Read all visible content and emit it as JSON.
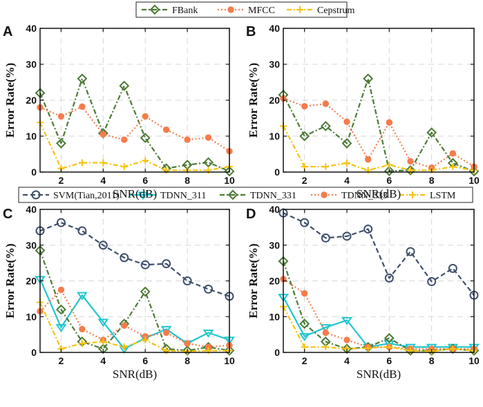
{
  "colors": {
    "FBank": "#4a7a33",
    "MFCC": "#f47c4c",
    "Cepstrum": "#f5c20f",
    "SVM": "#3d4f6b",
    "TDNN_311": "#1fc6cf",
    "TDNN_331": "#4a7a33",
    "TDNN_333": "#f47c4c",
    "LSTM": "#f5c20f"
  },
  "legends": [
    {
      "entries": [
        "FBank",
        "MFCC",
        "Cepstrum"
      ]
    },
    {
      "entries": [
        "SVM(Tian,2011)",
        "TDNN_311",
        "TDNN_331",
        "TDNN_333",
        "LSTM"
      ]
    }
  ],
  "chart_data": [
    {
      "panel": "A",
      "type": "line",
      "xlabel": "SNR(dB)",
      "ylabel": "Error Rate(%)",
      "xlim": [
        1,
        10
      ],
      "ylim": [
        0,
        40
      ],
      "xticks": [
        2,
        4,
        6,
        8,
        10
      ],
      "yticks": [
        0,
        10,
        20,
        30,
        40
      ],
      "grid": true,
      "x": [
        1,
        2,
        3,
        4,
        5,
        6,
        7,
        8,
        9,
        10
      ],
      "series": [
        {
          "name": "FBank",
          "key": "FBank",
          "marker": "diamond",
          "dash": "dashdot",
          "values": [
            22,
            8,
            26,
            10.8,
            24,
            9.5,
            1,
            2,
            2.7,
            0.2
          ]
        },
        {
          "name": "MFCC",
          "key": "MFCC",
          "marker": "circle",
          "dash": "dotted",
          "values": [
            18,
            15.5,
            18.2,
            10.5,
            9,
            15.5,
            11.8,
            9,
            9.6,
            5.8
          ]
        },
        {
          "name": "Cepstrum",
          "key": "Cepstrum",
          "marker": "plus",
          "dash": "dashdot",
          "values": [
            13.8,
            1,
            2.6,
            2.6,
            1.5,
            3.2,
            0.5,
            0.5,
            0.5,
            1.5
          ]
        }
      ]
    },
    {
      "panel": "B",
      "type": "line",
      "xlabel": "SNR(dB)",
      "ylabel": "Error Rate(%)",
      "xlim": [
        1,
        10
      ],
      "ylim": [
        0,
        40
      ],
      "xticks": [
        2,
        4,
        6,
        8,
        10
      ],
      "yticks": [
        0,
        10,
        20,
        30,
        40
      ],
      "grid": true,
      "x": [
        1,
        2,
        3,
        4,
        5,
        6,
        7,
        8,
        9,
        10
      ],
      "series": [
        {
          "name": "FBank",
          "key": "FBank",
          "marker": "diamond",
          "dash": "dashdot",
          "values": [
            21.5,
            10,
            12.8,
            8,
            26,
            0.3,
            0.5,
            11,
            2.5,
            0.2
          ]
        },
        {
          "name": "MFCC",
          "key": "MFCC",
          "marker": "circle",
          "dash": "dotted",
          "values": [
            20.5,
            18.3,
            19,
            14,
            3.5,
            13.8,
            3,
            1.2,
            5.2,
            1.5
          ]
        },
        {
          "name": "Cepstrum",
          "key": "Cepstrum",
          "marker": "plus",
          "dash": "dashdot",
          "values": [
            12.8,
            1.5,
            1.5,
            2.5,
            0.5,
            2,
            0.5,
            0.5,
            1.5,
            0.5
          ]
        }
      ]
    },
    {
      "panel": "C",
      "type": "line",
      "xlabel": "SNR(dB)",
      "ylabel": "Error Rate(%)",
      "xlim": [
        1,
        10
      ],
      "ylim": [
        0,
        40
      ],
      "xticks": [
        2,
        4,
        6,
        8,
        10
      ],
      "yticks": [
        0,
        10,
        20,
        30,
        40
      ],
      "grid": true,
      "x": [
        1,
        2,
        3,
        4,
        5,
        6,
        7,
        8,
        9,
        10
      ],
      "series": [
        {
          "name": "SVM(Tian,2011)",
          "key": "SVM",
          "marker": "ocircle",
          "dash": "dashed",
          "values": [
            34,
            36.3,
            34,
            30,
            26.5,
            24.5,
            24.8,
            20,
            17.7,
            15.7
          ]
        },
        {
          "name": "TDNN_311",
          "key": "TDNN_311",
          "marker": "triangle",
          "dash": "solid",
          "values": [
            20.5,
            7,
            16,
            8.5,
            1,
            4,
            6.5,
            2.5,
            5.5,
            3.5
          ]
        },
        {
          "name": "TDNN_331",
          "key": "TDNN_331",
          "marker": "diamond",
          "dash": "dashdot",
          "values": [
            28.5,
            12,
            3,
            1,
            8,
            17,
            1,
            0.5,
            1.5,
            0.5
          ]
        },
        {
          "name": "TDNN_333",
          "key": "TDNN_333",
          "marker": "circle",
          "dash": "dotted",
          "values": [
            11.5,
            17.5,
            6.5,
            3.5,
            7.5,
            4.5,
            5.5,
            2.5,
            1.5,
            2
          ]
        },
        {
          "name": "LSTM",
          "key": "LSTM",
          "marker": "plus",
          "dash": "dashdot",
          "values": [
            14,
            1,
            2.5,
            3,
            1.5,
            3.5,
            0.5,
            0.3,
            0.5,
            0.5
          ]
        }
      ]
    },
    {
      "panel": "D",
      "type": "line",
      "xlabel": "SNR(dB)",
      "ylabel": "Error Rate(%)",
      "xlim": [
        1,
        10
      ],
      "ylim": [
        0,
        40
      ],
      "xticks": [
        2,
        4,
        6,
        8,
        10
      ],
      "yticks": [
        0,
        10,
        20,
        30,
        40
      ],
      "grid": true,
      "x": [
        1,
        2,
        3,
        4,
        5,
        6,
        7,
        8,
        9,
        10
      ],
      "series": [
        {
          "name": "SVM(Tian,2011)",
          "key": "SVM",
          "marker": "ocircle",
          "dash": "dashed",
          "values": [
            39,
            36.3,
            32,
            32.5,
            34.5,
            20.8,
            28.2,
            19.8,
            23.5,
            16
          ]
        },
        {
          "name": "TDNN_311",
          "key": "TDNN_311",
          "marker": "triangle",
          "dash": "solid",
          "values": [
            15.5,
            4.5,
            7,
            9,
            1.5,
            2.5,
            1.5,
            1.5,
            1.5,
            1.5
          ]
        },
        {
          "name": "TDNN_331",
          "key": "TDNN_331",
          "marker": "diamond",
          "dash": "dashdot",
          "values": [
            25.5,
            8,
            3,
            1,
            1.5,
            4,
            0.5,
            0.5,
            1,
            0.5
          ]
        },
        {
          "name": "TDNN_333",
          "key": "TDNN_333",
          "marker": "circle",
          "dash": "dotted",
          "values": [
            20.5,
            16.5,
            5.5,
            3.5,
            1.5,
            1.5,
            1,
            1,
            1,
            1
          ]
        },
        {
          "name": "LSTM",
          "key": "LSTM",
          "marker": "plus",
          "dash": "dashdot",
          "values": [
            12.8,
            1.5,
            1.5,
            1,
            1.2,
            1.5,
            0.5,
            0.3,
            1,
            0.5
          ]
        }
      ]
    }
  ]
}
